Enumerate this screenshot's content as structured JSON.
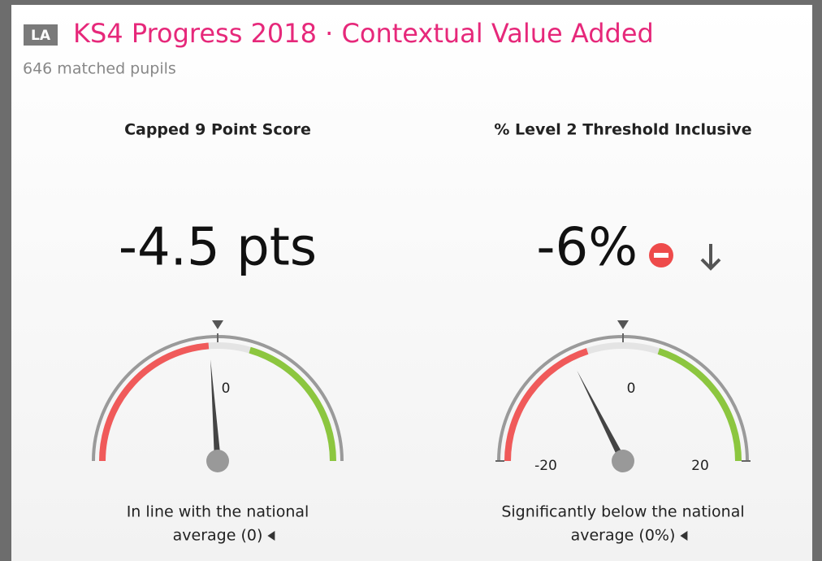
{
  "header": {
    "badge": "LA",
    "title": "KS4 Progress 2018 · Contextual Value Added",
    "subtitle": "646 matched pupils"
  },
  "chart_data": [
    {
      "type": "gauge",
      "title": "Capped 9 Point Score",
      "value": -4.5,
      "value_label": "-4.5 pts",
      "ylim": [
        -100,
        100
      ],
      "yticks": [
        0
      ],
      "bands": [
        {
          "from": -100,
          "to": -5,
          "color": "#f05a5a"
        },
        {
          "from": 18,
          "to": 100,
          "color": "#8cc63f"
        }
      ],
      "caption": [
        "In line with the national",
        "average (0)"
      ]
    },
    {
      "type": "gauge",
      "title": "% Level 2 Threshold Inclusive",
      "value": -6,
      "value_label": "-6%",
      "ylim": [
        -20,
        20
      ],
      "yticks": [
        -20,
        0,
        20
      ],
      "bands": [
        {
          "from": -20,
          "to": -4,
          "color": "#f05a5a"
        },
        {
          "from": 4,
          "to": 20,
          "color": "#8cc63f"
        }
      ],
      "caption": [
        "Significantly below the national",
        "average (0%)"
      ]
    }
  ]
}
